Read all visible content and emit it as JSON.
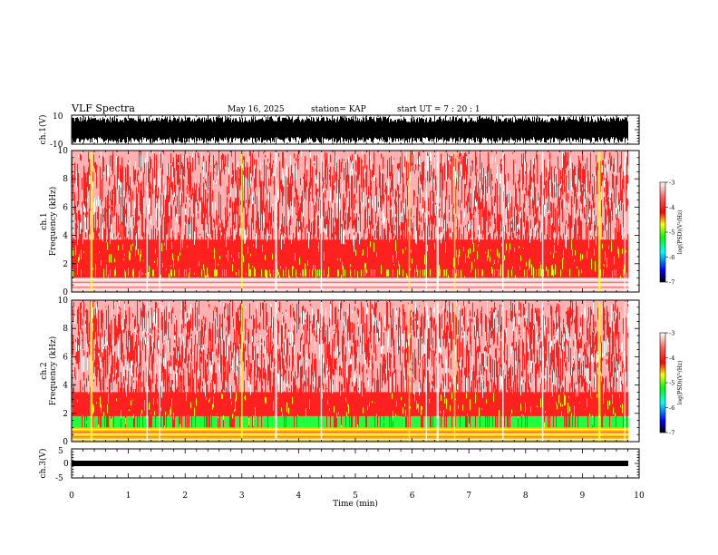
{
  "header": {
    "title": "VLF Spectra",
    "date": "May 16, 2025",
    "station": "station= KAP",
    "start": "start  UT =   7 : 20 : 1"
  },
  "chart_data": [
    {
      "type": "line",
      "name": "waveform-ch1",
      "ylabel": "ch.1(V)",
      "ylim": [
        -10,
        10
      ],
      "yticks": [
        "10",
        "-10"
      ],
      "xlim": [
        0,
        10
      ],
      "description_level": "saturated noise filling most of range"
    },
    {
      "type": "heatmap",
      "name": "spectrogram-ch1",
      "ylabel_line1": "ch.1",
      "ylabel_line2": "Frequency (kHz)",
      "ylim": [
        0,
        10
      ],
      "yticks": [
        "0",
        "2",
        "4",
        "6",
        "8",
        "10"
      ],
      "xlim": [
        0,
        10
      ],
      "colorbar": {
        "label": "log(PSD)(V²/Hz)",
        "range": [
          -7,
          -3
        ],
        "ticks": [
          "-3",
          "-4",
          "-5",
          "-6",
          "-7"
        ],
        "colors": [
          "#000000",
          "#0000ff",
          "#00ffff",
          "#00ff00",
          "#ffff00",
          "#ff0000",
          "#ffffff"
        ]
      }
    },
    {
      "type": "heatmap",
      "name": "spectrogram-ch2",
      "ylabel_line1": "ch.2",
      "ylabel_line2": "Frequency (kHz)",
      "ylim": [
        0,
        10
      ],
      "yticks": [
        "0",
        "2",
        "4",
        "6",
        "8",
        "10"
      ],
      "xlim": [
        0,
        10
      ],
      "colorbar": {
        "label": "log(PSD)(V²/Hz)",
        "range": [
          -7,
          -3
        ],
        "ticks": [
          "-3",
          "-4",
          "-5",
          "-6",
          "-7"
        ]
      }
    },
    {
      "type": "line",
      "name": "waveform-ch3",
      "ylabel": "ch.3(V)",
      "ylim": [
        -5,
        5
      ],
      "yticks": [
        "5",
        "0",
        "-5"
      ],
      "xlim": [
        0,
        10
      ],
      "xlabel": "Time (min)",
      "xticks": [
        "0",
        "1",
        "2",
        "3",
        "4",
        "5",
        "6",
        "7",
        "8",
        "9",
        "10"
      ]
    }
  ]
}
